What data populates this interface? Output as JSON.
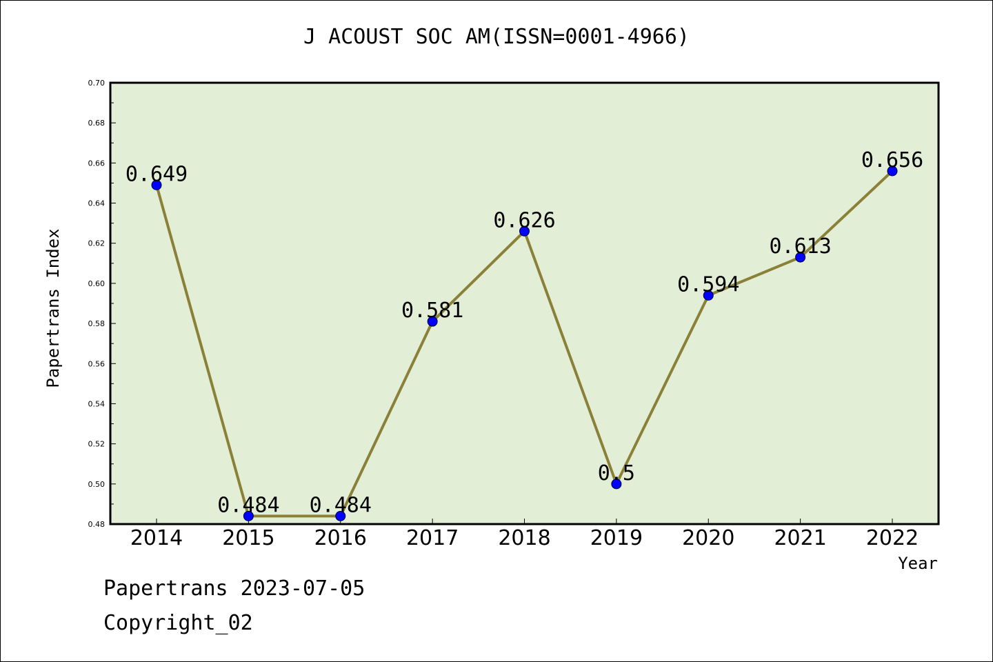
{
  "chart_data": {
    "type": "line",
    "title": "J ACOUST SOC AM(ISSN=0001-4966)",
    "xlabel": "Year",
    "ylabel": "Papertrans Index",
    "categories": [
      "2014",
      "2015",
      "2016",
      "2017",
      "2018",
      "2019",
      "2020",
      "2021",
      "2022"
    ],
    "values": [
      0.649,
      0.484,
      0.484,
      0.581,
      0.626,
      0.5,
      0.594,
      0.613,
      0.656
    ],
    "data_labels": [
      "0.649",
      "0.484",
      "0.484",
      "0.581",
      "0.626",
      "0.5",
      "0.594",
      "0.613",
      "0.656"
    ],
    "ylim": [
      0.48,
      0.7
    ],
    "yticks": [
      "0.48",
      "0.50",
      "0.52",
      "0.54",
      "0.56",
      "0.58",
      "0.60",
      "0.62",
      "0.64",
      "0.66",
      "0.68",
      "0.70"
    ],
    "grid": false,
    "colors": {
      "plot_background": "#e2efd6",
      "line": "#8b8038",
      "marker": "#0000ff"
    }
  },
  "footer": {
    "line1": "Papertrans 2023-07-05",
    "line2": "Copyright_02"
  }
}
